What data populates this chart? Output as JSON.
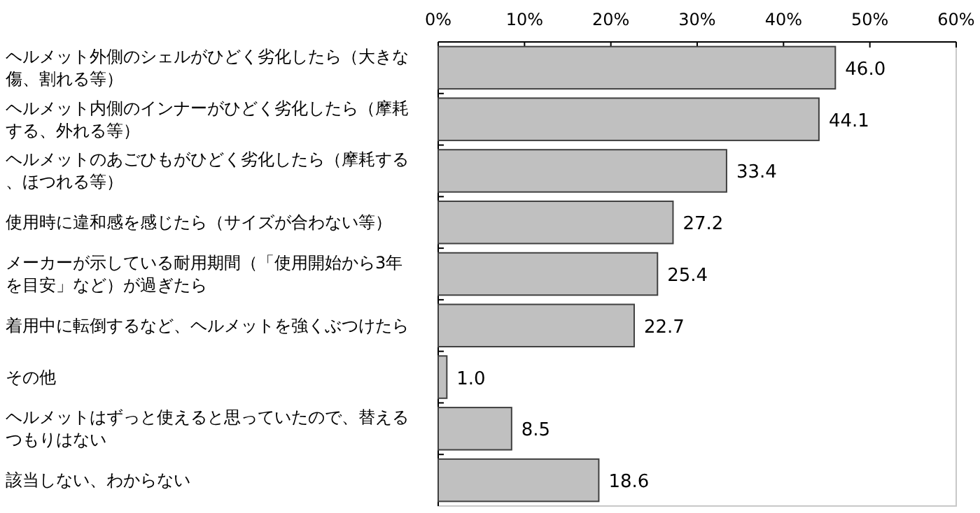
{
  "chart_data": {
    "type": "bar",
    "orientation": "horizontal",
    "categories": [
      "ヘルメット外側のシェルがひどく劣化したら（大きな傷、割れる等）",
      "ヘルメット内側のインナーがひどく劣化したら（摩耗する、外れる等）",
      "ヘルメットのあごひもがひどく劣化したら（摩耗する、ほつれる等）",
      "使用時に違和感を感じたら（サイズが合わない等）",
      "メーカーが示している耐用期間（「使用開始から3年を目安」など）が過ぎたら",
      "着用中に転倒するなど、ヘルメットを強くぶつけたら",
      "その他",
      "ヘルメットはずっと使えると思っていたので、替えるつもりはない",
      "該当しない、わからない"
    ],
    "values": [
      46.0,
      44.1,
      33.4,
      27.2,
      25.4,
      22.7,
      1.0,
      8.5,
      18.6
    ],
    "value_labels": [
      "46.0",
      "44.1",
      "33.4",
      "27.2",
      "25.4",
      "22.7",
      "1.0",
      "8.5",
      "18.6"
    ],
    "color": "#c0c0c0",
    "xlim": [
      0,
      60
    ],
    "xticks": [
      {
        "value": 0,
        "label": "0%"
      },
      {
        "value": 10,
        "label": "10%"
      },
      {
        "value": 20,
        "label": "20%"
      },
      {
        "value": 30,
        "label": "30%"
      },
      {
        "value": 40,
        "label": "40%"
      },
      {
        "value": 50,
        "label": "50%"
      },
      {
        "value": 60,
        "label": "60%"
      }
    ],
    "grid": false
  }
}
